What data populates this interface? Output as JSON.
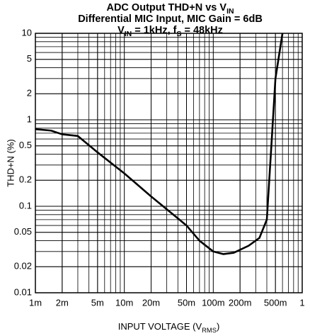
{
  "chart_data": {
    "type": "line",
    "title": [
      [
        "ADC Output THD+N vs V",
        {
          "sub": "IN"
        }
      ],
      [
        "Differential MIC Input, MIC Gain = 6dB"
      ],
      [
        "V",
        {
          "sub": "IN"
        },
        " = 1kHz, f",
        {
          "sub": "S"
        },
        " = 48kHz"
      ]
    ],
    "xlabel": [
      "INPUT VOLTAGE (V",
      {
        "sub": "RMS"
      },
      ")"
    ],
    "ylabel": "THD+N (%)",
    "xscale": "log",
    "yscale": "log",
    "grid": true,
    "xlim": [
      0.001,
      1
    ],
    "ylim": [
      0.01,
      10
    ],
    "xticks": [
      {
        "value": 0.001,
        "label": "1m"
      },
      {
        "value": 0.002,
        "label": "2m"
      },
      {
        "value": 0.005,
        "label": "5m"
      },
      {
        "value": 0.01,
        "label": "10m"
      },
      {
        "value": 0.02,
        "label": "20m"
      },
      {
        "value": 0.05,
        "label": "50m"
      },
      {
        "value": 0.1,
        "label": "100m"
      },
      {
        "value": 0.2,
        "label": "200m"
      },
      {
        "value": 0.5,
        "label": "500m"
      },
      1
    ],
    "yticks": [
      0.01,
      0.02,
      0.05,
      0.1,
      0.2,
      0.5,
      1,
      2,
      5,
      10
    ],
    "x": [
      0.001,
      0.0015,
      0.002,
      0.003,
      0.005,
      0.01,
      0.02,
      0.05,
      0.07,
      0.1,
      0.13,
      0.17,
      0.25,
      0.33,
      0.4,
      0.45,
      0.5,
      0.6
    ],
    "series": [
      {
        "name": "THD+N",
        "color": "#000000",
        "values": [
          0.78,
          0.75,
          0.68,
          0.65,
          0.42,
          0.24,
          0.13,
          0.06,
          0.04,
          0.03,
          0.028,
          0.029,
          0.035,
          0.043,
          0.07,
          0.5,
          3,
          10
        ]
      }
    ]
  }
}
